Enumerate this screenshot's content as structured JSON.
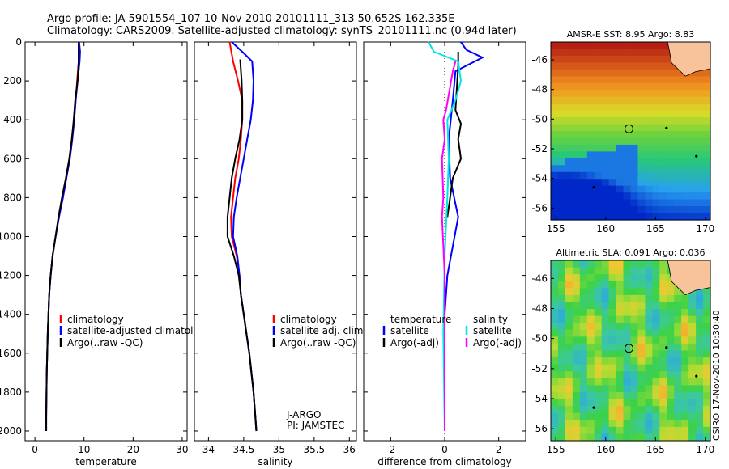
{
  "header": {
    "line1": "Argo profile: JA 5901554_107 10-Nov-2010 20101111_313 50.652S 162.335E",
    "line2": "Climatology: CARS2009. Satellite-adjusted climatology: synTS_20101111.nc (0.94d later)"
  },
  "footer_stamp": "CSIRO 17-Nov-2010 10:30:40",
  "colors": {
    "climatology": "#ff0000",
    "satellite": "#0000ff",
    "argo": "#000000",
    "sal_satellite": "#00e5e5",
    "sal_argo": "#ff00ff",
    "land": "#f8c39a"
  },
  "chart_data": [
    {
      "type": "line",
      "title": "",
      "xlabel": "temperature",
      "ylabel": "",
      "xlim": [
        -2,
        31
      ],
      "ylim": [
        2050,
        0
      ],
      "xticks": [
        0,
        10,
        20,
        30
      ],
      "yticks": [
        0,
        200,
        400,
        600,
        800,
        1000,
        1200,
        1400,
        1600,
        1800,
        2000
      ],
      "legend": [
        "climatology",
        "satellite-adjusted climatology",
        "Argo(..raw -QC)"
      ],
      "series": [
        {
          "name": "climatology",
          "color": "#ff0000",
          "points": [
            [
              8.9,
              0
            ],
            [
              8.9,
              100
            ],
            [
              8.6,
              200
            ],
            [
              8.3,
              300
            ],
            [
              8.0,
              400
            ],
            [
              7.6,
              500
            ],
            [
              7.1,
              600
            ],
            [
              6.4,
              700
            ],
            [
              5.7,
              800
            ],
            [
              4.9,
              900
            ],
            [
              4.2,
              1000
            ],
            [
              3.6,
              1100
            ],
            [
              3.2,
              1200
            ],
            [
              2.9,
              1300
            ],
            [
              2.75,
              1400
            ],
            [
              2.6,
              1500
            ],
            [
              2.5,
              1600
            ],
            [
              2.4,
              1700
            ],
            [
              2.35,
              1800
            ],
            [
              2.3,
              1900
            ],
            [
              2.25,
              2000
            ]
          ]
        },
        {
          "name": "satellite-adjusted climatology",
          "color": "#0000ff",
          "points": [
            [
              9.0,
              0
            ],
            [
              9.2,
              50
            ],
            [
              9.1,
              100
            ],
            [
              8.7,
              200
            ],
            [
              8.3,
              300
            ],
            [
              8.0,
              400
            ],
            [
              7.6,
              500
            ],
            [
              7.1,
              600
            ],
            [
              6.4,
              700
            ],
            [
              5.7,
              800
            ],
            [
              4.9,
              900
            ],
            [
              4.2,
              1000
            ],
            [
              3.6,
              1100
            ],
            [
              3.2,
              1200
            ],
            [
              2.9,
              1300
            ],
            [
              2.75,
              1400
            ],
            [
              2.6,
              1500
            ],
            [
              2.5,
              1600
            ],
            [
              2.4,
              1700
            ],
            [
              2.35,
              1800
            ],
            [
              2.3,
              1900
            ],
            [
              2.25,
              2000
            ]
          ]
        },
        {
          "name": "Argo(..raw -QC)",
          "color": "#000000",
          "points": [
            [
              8.9,
              0
            ],
            [
              8.9,
              100
            ],
            [
              8.7,
              200
            ],
            [
              8.2,
              300
            ],
            [
              7.9,
              400
            ],
            [
              7.5,
              500
            ],
            [
              7.0,
              600
            ],
            [
              6.3,
              700
            ],
            [
              5.5,
              800
            ],
            [
              4.8,
              900
            ],
            [
              4.2,
              1000
            ],
            [
              3.6,
              1100
            ],
            [
              3.2,
              1200
            ],
            [
              2.9,
              1300
            ],
            [
              2.75,
              1400
            ],
            [
              2.6,
              1500
            ],
            [
              2.5,
              1600
            ],
            [
              2.4,
              1700
            ],
            [
              2.35,
              1800
            ],
            [
              2.3,
              1900
            ],
            [
              2.3,
              2000
            ]
          ]
        }
      ]
    },
    {
      "type": "line",
      "title": "",
      "xlabel": "salinity",
      "ylabel": "",
      "xlim": [
        33.8,
        36.1
      ],
      "ylim": [
        2050,
        0
      ],
      "xticks": [
        34,
        34.5,
        35,
        35.5,
        36
      ],
      "legend": [
        "climatology",
        "satellite adj. clim.",
        "Argo(..raw -QC)"
      ],
      "annotation": [
        "J-ARGO",
        "PI: JAMSTEC"
      ],
      "series": [
        {
          "name": "climatology",
          "color": "#ff0000",
          "points": [
            [
              34.3,
              0
            ],
            [
              34.35,
              100
            ],
            [
              34.42,
              200
            ],
            [
              34.48,
              300
            ],
            [
              34.48,
              400
            ],
            [
              34.46,
              500
            ],
            [
              34.43,
              600
            ],
            [
              34.38,
              700
            ],
            [
              34.35,
              800
            ],
            [
              34.32,
              900
            ],
            [
              34.33,
              1000
            ],
            [
              34.4,
              1100
            ],
            [
              34.44,
              1200
            ],
            [
              34.46,
              1300
            ],
            [
              34.5,
              1400
            ],
            [
              34.54,
              1500
            ],
            [
              34.58,
              1600
            ],
            [
              34.61,
              1700
            ],
            [
              34.64,
              1800
            ],
            [
              34.66,
              1900
            ],
            [
              34.68,
              2000
            ]
          ]
        },
        {
          "name": "satellite adj. clim.",
          "color": "#0000ff",
          "points": [
            [
              34.33,
              0
            ],
            [
              34.48,
              50
            ],
            [
              34.62,
              100
            ],
            [
              34.64,
              200
            ],
            [
              34.63,
              300
            ],
            [
              34.6,
              400
            ],
            [
              34.55,
              500
            ],
            [
              34.5,
              600
            ],
            [
              34.45,
              700
            ],
            [
              34.4,
              800
            ],
            [
              34.36,
              900
            ],
            [
              34.35,
              1000
            ],
            [
              34.41,
              1100
            ],
            [
              34.44,
              1200
            ],
            [
              34.46,
              1300
            ],
            [
              34.5,
              1400
            ],
            [
              34.54,
              1500
            ],
            [
              34.58,
              1600
            ],
            [
              34.61,
              1700
            ],
            [
              34.64,
              1800
            ],
            [
              34.66,
              1900
            ],
            [
              34.68,
              2000
            ]
          ]
        },
        {
          "name": "Argo(..raw -QC)",
          "color": "#000000",
          "points": [
            [
              34.45,
              90
            ],
            [
              34.47,
              200
            ],
            [
              34.48,
              300
            ],
            [
              34.48,
              400
            ],
            [
              34.44,
              500
            ],
            [
              34.38,
              600
            ],
            [
              34.33,
              700
            ],
            [
              34.3,
              800
            ],
            [
              34.27,
              900
            ],
            [
              34.27,
              1000
            ],
            [
              34.36,
              1100
            ],
            [
              34.43,
              1200
            ],
            [
              34.46,
              1300
            ],
            [
              34.5,
              1400
            ],
            [
              34.54,
              1500
            ],
            [
              34.58,
              1600
            ],
            [
              34.61,
              1700
            ],
            [
              34.64,
              1800
            ],
            [
              34.66,
              1900
            ],
            [
              34.68,
              2000
            ]
          ]
        }
      ]
    },
    {
      "type": "line",
      "title": "",
      "xlabel": "difference from climatology",
      "ylabel": "",
      "xlim": [
        -3.0,
        3.0
      ],
      "ylim": [
        2050,
        0
      ],
      "xticks": [
        -2,
        0,
        2
      ],
      "legend": [
        "temperature",
        "satellite",
        "Argo(-adj)",
        "salinity",
        "satellite",
        "Argo(-adj)"
      ],
      "series": [
        {
          "name": "temperature satellite",
          "color": "#0000ff",
          "points": [
            [
              0.6,
              0
            ],
            [
              0.8,
              40
            ],
            [
              1.4,
              80
            ],
            [
              0.4,
              150
            ],
            [
              0.3,
              300
            ],
            [
              0.15,
              500
            ],
            [
              0.2,
              700
            ],
            [
              0.5,
              900
            ],
            [
              0.1,
              1200
            ],
            [
              0.0,
              1400
            ],
            [
              0.0,
              2000
            ]
          ]
        },
        {
          "name": "temperature Argo(-adj)",
          "color": "#000000",
          "points": [
            [
              0.5,
              50
            ],
            [
              0.5,
              120
            ],
            [
              0.4,
              350
            ],
            [
              0.6,
              420
            ],
            [
              0.5,
              500
            ],
            [
              0.6,
              600
            ],
            [
              0.3,
              700
            ],
            [
              0.2,
              800
            ],
            [
              0.1,
              900
            ]
          ]
        },
        {
          "name": "salinity satellite",
          "color": "#00e5e5",
          "points": [
            [
              -0.6,
              0
            ],
            [
              -0.4,
              50
            ],
            [
              0.5,
              100
            ],
            [
              0.6,
              200
            ],
            [
              0.4,
              300
            ],
            [
              0.1,
              400
            ],
            [
              0.15,
              600
            ],
            [
              0.1,
              800
            ],
            [
              0.0,
              1100
            ],
            [
              -0.05,
              1500
            ],
            [
              0.0,
              2000
            ]
          ]
        },
        {
          "name": "salinity Argo(-adj)",
          "color": "#ff00ff",
          "points": [
            [
              0.4,
              100
            ],
            [
              0.3,
              150
            ],
            [
              0.05,
              350
            ],
            [
              -0.05,
              400
            ],
            [
              0.0,
              500
            ],
            [
              -0.1,
              600
            ],
            [
              -0.05,
              800
            ],
            [
              -0.1,
              900
            ],
            [
              0.0,
              1200
            ],
            [
              0.0,
              1600
            ],
            [
              0.0,
              2000
            ]
          ]
        }
      ]
    },
    {
      "type": "heatmap",
      "title": "AMSR-E SST: 8.95 Argo: 8.83",
      "xlim": [
        154.5,
        170.5
      ],
      "ylim": [
        -56.8,
        -44.8
      ],
      "xticks": [
        155,
        160,
        165,
        170
      ],
      "yticks": [
        -46,
        -48,
        -50,
        -52,
        -54,
        -56
      ],
      "marker": [
        162.335,
        -50.652
      ]
    },
    {
      "type": "heatmap",
      "title": "Altimetric SLA: 0.091 Argo: 0.036",
      "xlim": [
        154.5,
        170.5
      ],
      "ylim": [
        -56.8,
        -44.8
      ],
      "xticks": [
        155,
        160,
        165,
        170
      ],
      "yticks": [
        -46,
        -48,
        -50,
        -52,
        -54,
        -56
      ],
      "marker": [
        162.335,
        -50.652
      ]
    }
  ]
}
